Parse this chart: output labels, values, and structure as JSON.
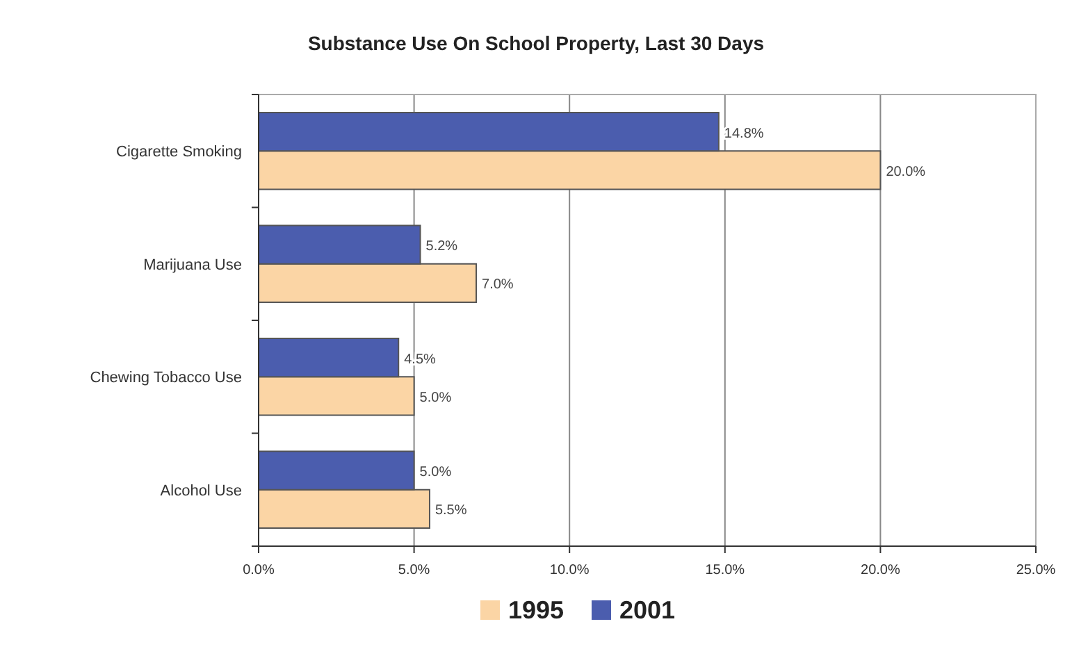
{
  "chart_data": {
    "type": "bar",
    "orientation": "horizontal",
    "title": "Substance Use On School Property, Last 30 Days",
    "categories": [
      "Cigarette Smoking",
      "Marijuana Use",
      "Chewing Tobacco Use",
      "Alcohol Use"
    ],
    "series": [
      {
        "name": "1995",
        "color": "#fbd5a5",
        "values": [
          20.0,
          7.0,
          5.0,
          5.5
        ],
        "value_labels": [
          "20.0%",
          "7.0%",
          "5.0%",
          "5.5%"
        ]
      },
      {
        "name": "2001",
        "color": "#4b5dae",
        "values": [
          14.8,
          5.2,
          4.5,
          5.0
        ],
        "value_labels": [
          "14.8%",
          "5.2%",
          "4.5%",
          "5.0%"
        ]
      }
    ],
    "xlim": [
      0,
      25
    ],
    "xticks": [
      {
        "value": 0,
        "label": "0.0%"
      },
      {
        "value": 5,
        "label": "5.0%"
      },
      {
        "value": 10,
        "label": "10.0%"
      },
      {
        "value": 15,
        "label": "15.0%"
      },
      {
        "value": 20,
        "label": "20.0%"
      },
      {
        "value": 25,
        "label": "25.0%"
      }
    ],
    "grid": "x",
    "legend": "bottom"
  }
}
